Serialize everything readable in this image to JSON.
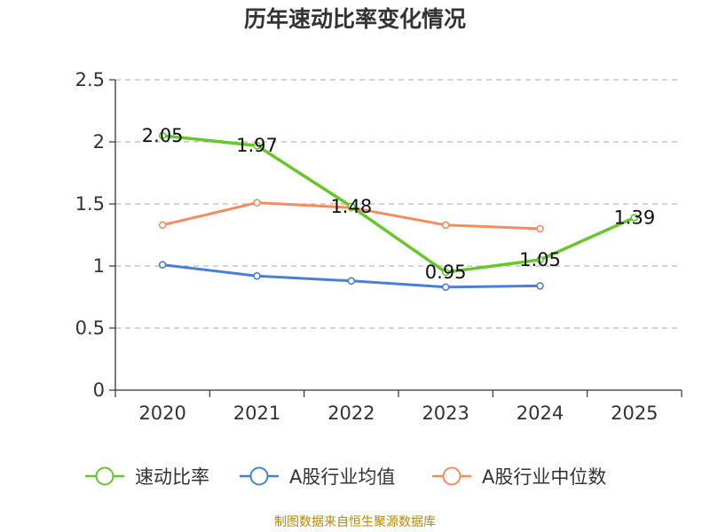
{
  "chart_data": {
    "type": "line",
    "title": "历年速动比率变化情况",
    "categories": [
      "2020",
      "2021",
      "2022",
      "2023",
      "2024",
      "2025"
    ],
    "ylim": [
      0,
      2.5
    ],
    "yticks": [
      "0",
      "0.5",
      "1",
      "1.5",
      "2",
      "2.5"
    ],
    "yticks_values": [
      0,
      0.5,
      1,
      1.5,
      2,
      2.5
    ],
    "grid": true,
    "legend_position": "bottom",
    "series": [
      {
        "name": "速动比率",
        "color": "#66c828",
        "values": [
          2.05,
          1.97,
          1.48,
          0.95,
          1.05,
          1.39
        ],
        "labels": [
          "2.05",
          "1.97",
          "1.48",
          "0.95",
          "1.05",
          "1.39"
        ],
        "show_labels": true
      },
      {
        "name": "A股行业均值",
        "color": "#4a7fd8",
        "values": [
          1.01,
          0.92,
          0.88,
          0.83,
          0.84,
          null
        ],
        "labels": [],
        "show_labels": false
      },
      {
        "name": "A股行业中位数",
        "color": "#f48c5e",
        "values": [
          1.33,
          1.51,
          1.47,
          1.33,
          1.3,
          null
        ],
        "labels": [],
        "show_labels": false
      }
    ]
  },
  "source": "制图数据来自恒生聚源数据库"
}
